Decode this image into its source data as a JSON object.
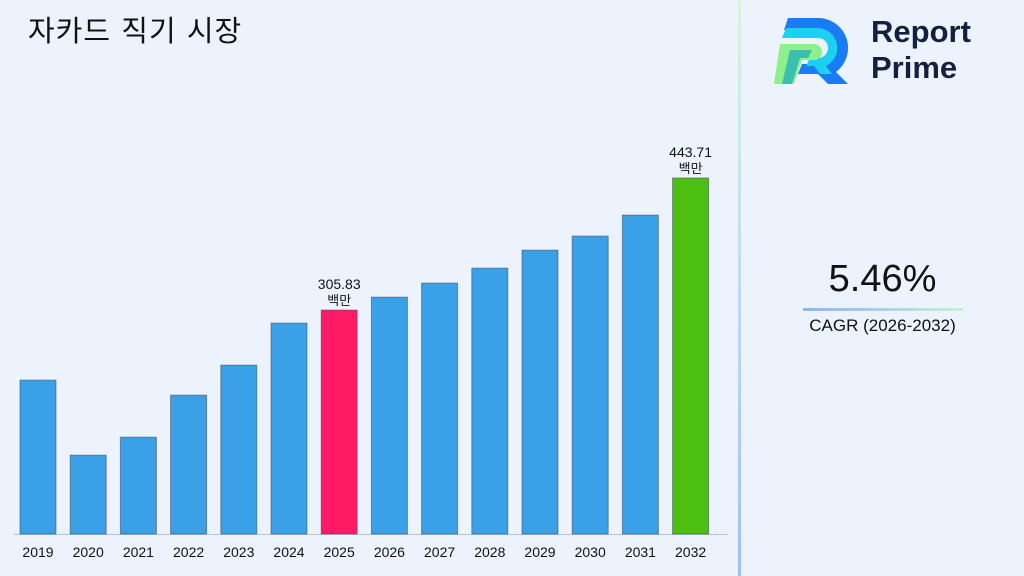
{
  "title": "자카드 직기 시장",
  "brand": {
    "line1": "Report",
    "line2": "Prime"
  },
  "cagr": {
    "value": "5.46%",
    "label": "CAGR (2026-2032)"
  },
  "chart_data": {
    "type": "bar",
    "title": "자카드 직기 시장",
    "categories": [
      "2019",
      "2020",
      "2021",
      "2022",
      "2023",
      "2024",
      "2025",
      "2026",
      "2027",
      "2028",
      "2029",
      "2030",
      "2031",
      "2032"
    ],
    "values": [
      232.7,
      154.3,
      173.1,
      217.0,
      248.3,
      292.2,
      305.83,
      319.3,
      334.0,
      349.6,
      368.4,
      383.1,
      405.0,
      443.71
    ],
    "data_labels": {
      "6": {
        "value": "305.83",
        "unit": "백만"
      },
      "13": {
        "value": "443.71",
        "unit": "백만"
      }
    },
    "colors": {
      "default": "#3aa0e8",
      "highlight_2025": "#ff1a66",
      "highlight_2032": "#4cbf10"
    },
    "ylim": [
      72,
      450
    ],
    "grid": false,
    "legend": "none"
  }
}
